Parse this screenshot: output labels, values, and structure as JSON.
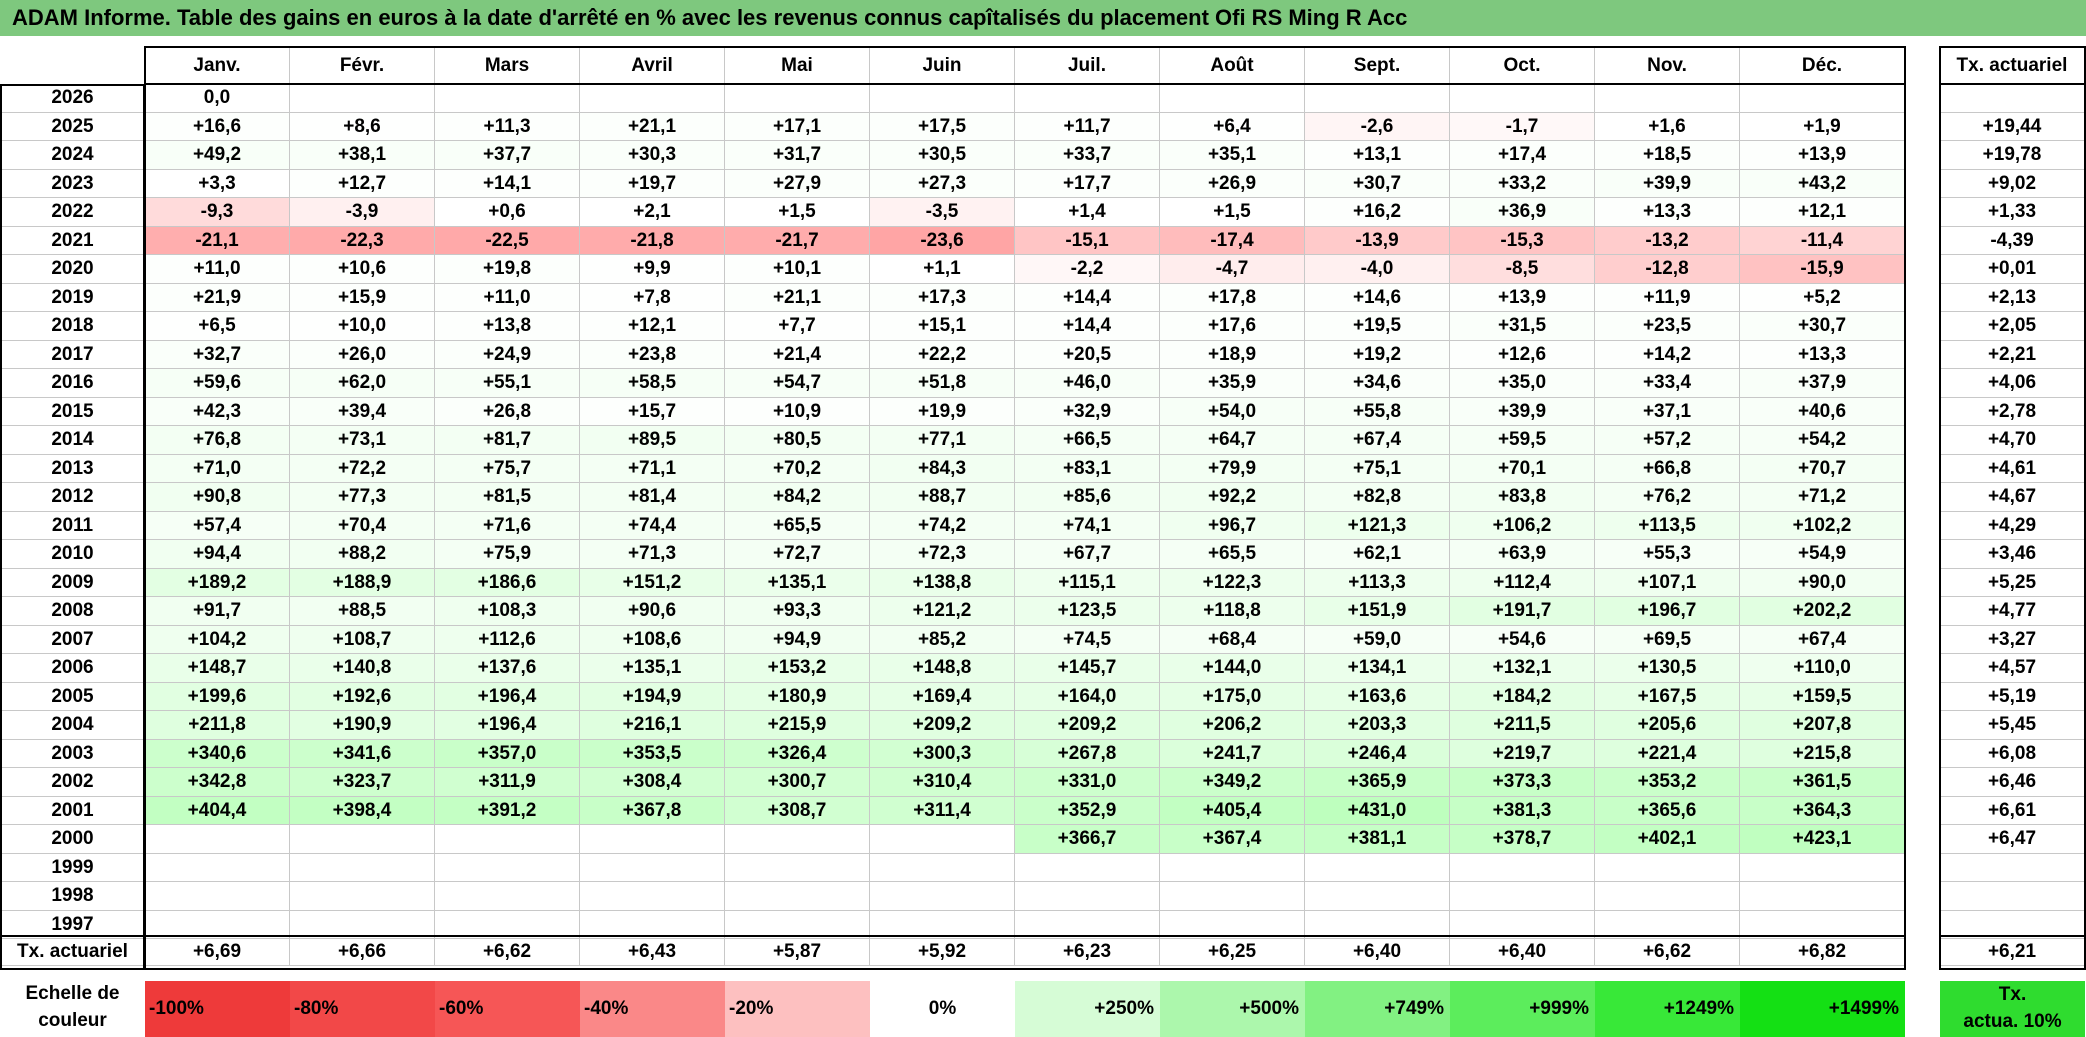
{
  "title": "ADAM Informe. Table des gains en euros à la date d'arrêté en % avec les revenus connus capîtalisés du placement Ofi RS Ming R Acc",
  "months": [
    "Janv.",
    "Févr.",
    "Mars",
    "Avril",
    "Mai",
    "Juin",
    "Juil.",
    "Août",
    "Sept.",
    "Oct.",
    "Nov.",
    "Déc."
  ],
  "rate_header": "Tx. actuariel",
  "rows": [
    {
      "year": "2026",
      "values": [
        "0,0",
        "",
        "",
        "",
        "",
        "",
        "",
        "",
        "",
        "",
        "",
        ""
      ],
      "rate": ""
    },
    {
      "year": "2025",
      "values": [
        "+16,6",
        "+8,6",
        "+11,3",
        "+21,1",
        "+17,1",
        "+17,5",
        "+11,7",
        "+6,4",
        "-2,6",
        "-1,7",
        "+1,6",
        "+1,9"
      ],
      "rate": "+19,44"
    },
    {
      "year": "2024",
      "values": [
        "+49,2",
        "+38,1",
        "+37,7",
        "+30,3",
        "+31,7",
        "+30,5",
        "+33,7",
        "+35,1",
        "+13,1",
        "+17,4",
        "+18,5",
        "+13,9"
      ],
      "rate": "+19,78"
    },
    {
      "year": "2023",
      "values": [
        "+3,3",
        "+12,7",
        "+14,1",
        "+19,7",
        "+27,9",
        "+27,3",
        "+17,7",
        "+26,9",
        "+30,7",
        "+33,2",
        "+39,9",
        "+43,2"
      ],
      "rate": "+9,02"
    },
    {
      "year": "2022",
      "values": [
        "-9,3",
        "-3,9",
        "+0,6",
        "+2,1",
        "+1,5",
        "-3,5",
        "+1,4",
        "+1,5",
        "+16,2",
        "+36,9",
        "+13,3",
        "+12,1"
      ],
      "rate": "+1,33"
    },
    {
      "year": "2021",
      "values": [
        "-21,1",
        "-22,3",
        "-22,5",
        "-21,8",
        "-21,7",
        "-23,6",
        "-15,1",
        "-17,4",
        "-13,9",
        "-15,3",
        "-13,2",
        "-11,4"
      ],
      "rate": "-4,39"
    },
    {
      "year": "2020",
      "values": [
        "+11,0",
        "+10,6",
        "+19,8",
        "+9,9",
        "+10,1",
        "+1,1",
        "-2,2",
        "-4,7",
        "-4,0",
        "-8,5",
        "-12,8",
        "-15,9"
      ],
      "rate": "+0,01"
    },
    {
      "year": "2019",
      "values": [
        "+21,9",
        "+15,9",
        "+11,0",
        "+7,8",
        "+21,1",
        "+17,3",
        "+14,4",
        "+17,8",
        "+14,6",
        "+13,9",
        "+11,9",
        "+5,2"
      ],
      "rate": "+2,13"
    },
    {
      "year": "2018",
      "values": [
        "+6,5",
        "+10,0",
        "+13,8",
        "+12,1",
        "+7,7",
        "+15,1",
        "+14,4",
        "+17,6",
        "+19,5",
        "+31,5",
        "+23,5",
        "+30,7"
      ],
      "rate": "+2,05"
    },
    {
      "year": "2017",
      "values": [
        "+32,7",
        "+26,0",
        "+24,9",
        "+23,8",
        "+21,4",
        "+22,2",
        "+20,5",
        "+18,9",
        "+19,2",
        "+12,6",
        "+14,2",
        "+13,3"
      ],
      "rate": "+2,21"
    },
    {
      "year": "2016",
      "values": [
        "+59,6",
        "+62,0",
        "+55,1",
        "+58,5",
        "+54,7",
        "+51,8",
        "+46,0",
        "+35,9",
        "+34,6",
        "+35,0",
        "+33,4",
        "+37,9"
      ],
      "rate": "+4,06"
    },
    {
      "year": "2015",
      "values": [
        "+42,3",
        "+39,4",
        "+26,8",
        "+15,7",
        "+10,9",
        "+19,9",
        "+32,9",
        "+54,0",
        "+55,8",
        "+39,9",
        "+37,1",
        "+40,6"
      ],
      "rate": "+2,78"
    },
    {
      "year": "2014",
      "values": [
        "+76,8",
        "+73,1",
        "+81,7",
        "+89,5",
        "+80,5",
        "+77,1",
        "+66,5",
        "+64,7",
        "+67,4",
        "+59,5",
        "+57,2",
        "+54,2"
      ],
      "rate": "+4,70"
    },
    {
      "year": "2013",
      "values": [
        "+71,0",
        "+72,2",
        "+75,7",
        "+71,1",
        "+70,2",
        "+84,3",
        "+83,1",
        "+79,9",
        "+75,1",
        "+70,1",
        "+66,8",
        "+70,7"
      ],
      "rate": "+4,61"
    },
    {
      "year": "2012",
      "values": [
        "+90,8",
        "+77,3",
        "+81,5",
        "+81,4",
        "+84,2",
        "+88,7",
        "+85,6",
        "+92,2",
        "+82,8",
        "+83,8",
        "+76,2",
        "+71,2"
      ],
      "rate": "+4,67"
    },
    {
      "year": "2011",
      "values": [
        "+57,4",
        "+70,4",
        "+71,6",
        "+74,4",
        "+65,5",
        "+74,2",
        "+74,1",
        "+96,7",
        "+121,3",
        "+106,2",
        "+113,5",
        "+102,2"
      ],
      "rate": "+4,29"
    },
    {
      "year": "2010",
      "values": [
        "+94,4",
        "+88,2",
        "+75,9",
        "+71,3",
        "+72,7",
        "+72,3",
        "+67,7",
        "+65,5",
        "+62,1",
        "+63,9",
        "+55,3",
        "+54,9"
      ],
      "rate": "+3,46"
    },
    {
      "year": "2009",
      "values": [
        "+189,2",
        "+188,9",
        "+186,6",
        "+151,2",
        "+135,1",
        "+138,8",
        "+115,1",
        "+122,3",
        "+113,3",
        "+112,4",
        "+107,1",
        "+90,0"
      ],
      "rate": "+5,25"
    },
    {
      "year": "2008",
      "values": [
        "+91,7",
        "+88,5",
        "+108,3",
        "+90,6",
        "+93,3",
        "+121,2",
        "+123,5",
        "+118,8",
        "+151,9",
        "+191,7",
        "+196,7",
        "+202,2"
      ],
      "rate": "+4,77"
    },
    {
      "year": "2007",
      "values": [
        "+104,2",
        "+108,7",
        "+112,6",
        "+108,6",
        "+94,9",
        "+85,2",
        "+74,5",
        "+68,4",
        "+59,0",
        "+54,6",
        "+69,5",
        "+67,4"
      ],
      "rate": "+3,27"
    },
    {
      "year": "2006",
      "values": [
        "+148,7",
        "+140,8",
        "+137,6",
        "+135,1",
        "+153,2",
        "+148,8",
        "+145,7",
        "+144,0",
        "+134,1",
        "+132,1",
        "+130,5",
        "+110,0"
      ],
      "rate": "+4,57"
    },
    {
      "year": "2005",
      "values": [
        "+199,6",
        "+192,6",
        "+196,4",
        "+194,9",
        "+180,9",
        "+169,4",
        "+164,0",
        "+175,0",
        "+163,6",
        "+184,2",
        "+167,5",
        "+159,5"
      ],
      "rate": "+5,19"
    },
    {
      "year": "2004",
      "values": [
        "+211,8",
        "+190,9",
        "+196,4",
        "+216,1",
        "+215,9",
        "+209,2",
        "+209,2",
        "+206,2",
        "+203,3",
        "+211,5",
        "+205,6",
        "+207,8"
      ],
      "rate": "+5,45"
    },
    {
      "year": "2003",
      "values": [
        "+340,6",
        "+341,6",
        "+357,0",
        "+353,5",
        "+326,4",
        "+300,3",
        "+267,8",
        "+241,7",
        "+246,4",
        "+219,7",
        "+221,4",
        "+215,8"
      ],
      "rate": "+6,08"
    },
    {
      "year": "2002",
      "values": [
        "+342,8",
        "+323,7",
        "+311,9",
        "+308,4",
        "+300,7",
        "+310,4",
        "+331,0",
        "+349,2",
        "+365,9",
        "+373,3",
        "+353,2",
        "+361,5"
      ],
      "rate": "+6,46"
    },
    {
      "year": "2001",
      "values": [
        "+404,4",
        "+398,4",
        "+391,2",
        "+367,8",
        "+308,7",
        "+311,4",
        "+352,9",
        "+405,4",
        "+431,0",
        "+381,3",
        "+365,6",
        "+364,3"
      ],
      "rate": "+6,61"
    },
    {
      "year": "2000",
      "values": [
        "",
        "",
        "",
        "",
        "",
        "",
        "+366,7",
        "+367,4",
        "+381,1",
        "+378,7",
        "+402,1",
        "+423,1"
      ],
      "rate": "+6,47"
    },
    {
      "year": "1999",
      "values": [
        "",
        "",
        "",
        "",
        "",
        "",
        "",
        "",
        "",
        "",
        "",
        ""
      ],
      "rate": ""
    },
    {
      "year": "1998",
      "values": [
        "",
        "",
        "",
        "",
        "",
        "",
        "",
        "",
        "",
        "",
        "",
        ""
      ],
      "rate": ""
    },
    {
      "year": "1997",
      "values": [
        "",
        "",
        "",
        "",
        "",
        "",
        "",
        "",
        "",
        "",
        "",
        ""
      ],
      "rate": ""
    }
  ],
  "footer": {
    "label": "Tx. actuariel",
    "values": [
      "+6,69",
      "+6,66",
      "+6,62",
      "+6,43",
      "+5,87",
      "+5,92",
      "+6,23",
      "+6,25",
      "+6,40",
      "+6,40",
      "+6,62",
      "+6,82"
    ],
    "rate": "+6,21"
  },
  "scale": {
    "label_line1": "Echelle de",
    "label_line2": "couleur",
    "items": [
      {
        "text": "-100%",
        "color": "#ee3a3a",
        "align": "left"
      },
      {
        "text": "-80%",
        "color": "#f24848",
        "align": "left"
      },
      {
        "text": "-60%",
        "color": "#f65656",
        "align": "left"
      },
      {
        "text": "-40%",
        "color": "#fa8888",
        "align": "left"
      },
      {
        "text": "-20%",
        "color": "#fdc0c0",
        "align": "left"
      },
      {
        "text": "0%",
        "color": "#ffffff",
        "align": "center"
      },
      {
        "text": "+250%",
        "color": "#d6fcd6",
        "align": "right"
      },
      {
        "text": "+500%",
        "color": "#acf7ac",
        "align": "right"
      },
      {
        "text": "+749%",
        "color": "#82f182",
        "align": "right"
      },
      {
        "text": "+999%",
        "color": "#5ced5c",
        "align": "right"
      },
      {
        "text": "+1249%",
        "color": "#38e838",
        "align": "right"
      },
      {
        "text": "+1499%",
        "color": "#14e014",
        "align": "right"
      }
    ],
    "rate_line1": "Tx.",
    "rate_line2": "actua. 10%",
    "rate_color": "#2fdc2f"
  }
}
